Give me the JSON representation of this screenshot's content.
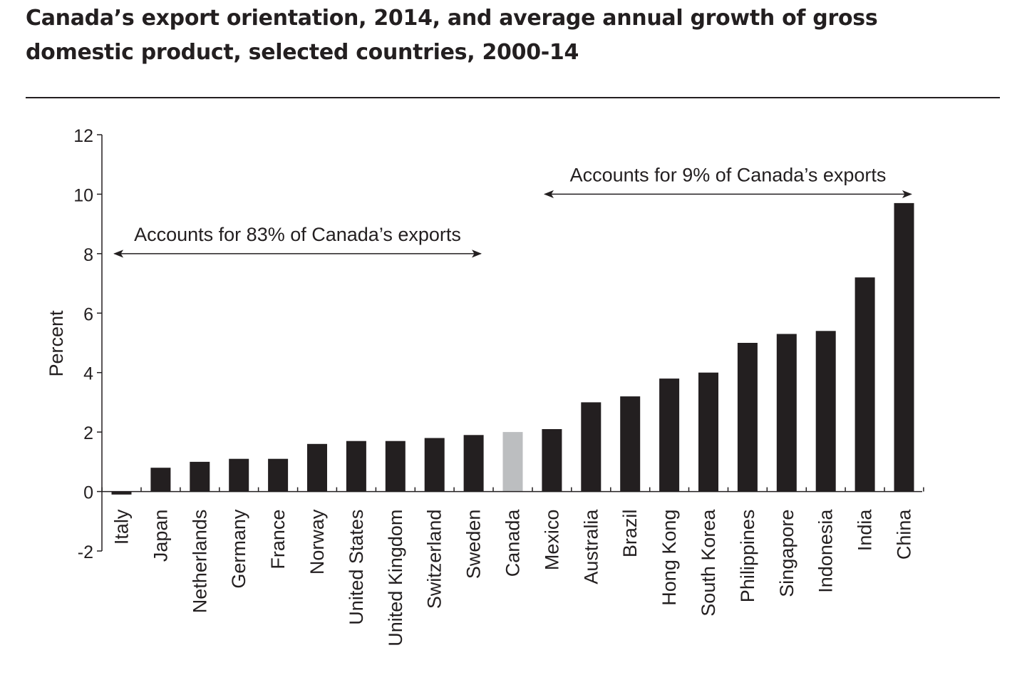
{
  "title": "Canada’s export orientation, 2014, and average annual growth of gross domestic product, selected countries, 2000-14",
  "colors": {
    "bar": "#231f20",
    "highlight_bar": "#bcbec0",
    "axis": "#231f20"
  },
  "chart_data": {
    "type": "bar",
    "title": "Canada’s export orientation, 2014, and average annual growth of gross domestic product, selected countries, 2000-14",
    "xlabel": "",
    "ylabel": "Percent",
    "ylim": [
      -2,
      12
    ],
    "yticks": [
      -2,
      0,
      2,
      4,
      6,
      8,
      10,
      12
    ],
    "grid": false,
    "categories": [
      "Italy",
      "Japan",
      "Netherlands",
      "Germany",
      "France",
      "Norway",
      "United States",
      "United Kingdom",
      "Switzerland",
      "Sweden",
      "Canada",
      "Mexico",
      "Australia",
      "Brazil",
      "Hong Kong",
      "South Korea",
      "Philippines",
      "Singapore",
      "Indonesia",
      "India",
      "China"
    ],
    "values": [
      -0.1,
      0.8,
      1.0,
      1.1,
      1.1,
      1.6,
      1.7,
      1.7,
      1.8,
      1.9,
      2.0,
      2.1,
      3.0,
      3.2,
      3.8,
      4.0,
      5.0,
      5.3,
      5.4,
      7.2,
      9.7
    ],
    "highlight": [
      "Canada"
    ],
    "annotations": [
      {
        "text": "Accounts for 83% of Canada’s exports",
        "from": "Italy",
        "to": "Sweden",
        "y": 8
      },
      {
        "text": "Accounts for 9% of Canada’s exports",
        "from": "Mexico",
        "to": "China",
        "y": 10
      }
    ]
  }
}
